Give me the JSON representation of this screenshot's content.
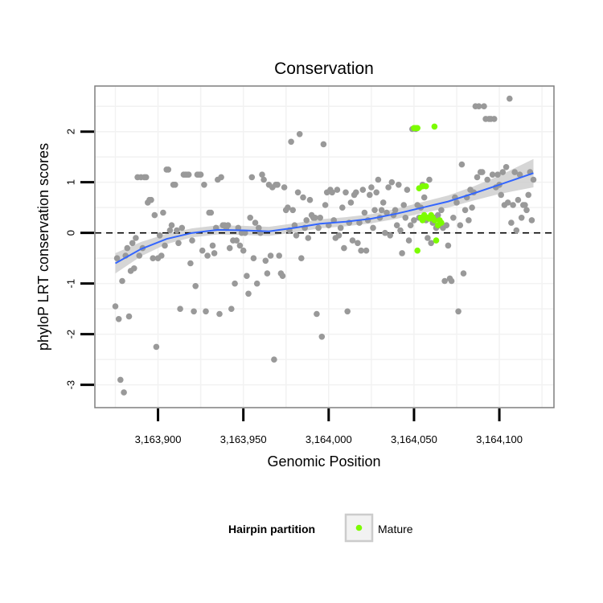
{
  "chart_data": {
    "type": "scatter",
    "title": "Conservation",
    "xlabel": "Genomic Position",
    "ylabel": "phyloP LRT conservation scores",
    "xlim": [
      3163863,
      3164132
    ],
    "ylim": [
      -3.45,
      2.9
    ],
    "x_ticks": [
      {
        "value": 3163900,
        "label": "3,163,900"
      },
      {
        "value": 3163950,
        "label": "3,163,950"
      },
      {
        "value": 3164000,
        "label": "3,164,000"
      },
      {
        "value": 3164050,
        "label": "3,164,050"
      },
      {
        "value": 3164100,
        "label": "3,164,100"
      }
    ],
    "y_ticks": [
      {
        "value": -3,
        "label": "-3"
      },
      {
        "value": -2,
        "label": "-2"
      },
      {
        "value": -1,
        "label": "-1"
      },
      {
        "value": 0,
        "label": "0"
      },
      {
        "value": 1,
        "label": "1"
      },
      {
        "value": 2,
        "label": "2"
      }
    ],
    "grid": true,
    "reference_line": {
      "y": 0,
      "style": "dashed"
    },
    "legend": {
      "title": "Hairpin partition",
      "placement": "bottom",
      "entries": [
        {
          "label": "Mature",
          "color": "#7cfc00"
        }
      ]
    },
    "colors": {
      "background_points": "#999999",
      "mature_points": "#7cfc00",
      "smooth_line": "#3366ff",
      "confidence_band": "#cccccc",
      "panel_border": "#7f7f7f",
      "grid": "#f2f2f2"
    },
    "series": [
      {
        "name": "",
        "color": "#999999",
        "points": [
          [
            3163875,
            -1.45
          ],
          [
            3163876,
            -0.5
          ],
          [
            3163877,
            -1.7
          ],
          [
            3163878,
            -2.9
          ],
          [
            3163879,
            -0.95
          ],
          [
            3163880,
            -3.15
          ],
          [
            3163881,
            -0.45
          ],
          [
            3163882,
            -0.3
          ],
          [
            3163883,
            -1.65
          ],
          [
            3163884,
            -0.75
          ],
          [
            3163885,
            -0.2
          ],
          [
            3163886,
            -0.7
          ],
          [
            3163887,
            -0.1
          ],
          [
            3163888,
            1.1
          ],
          [
            3163889,
            -0.45
          ],
          [
            3163890,
            1.1
          ],
          [
            3163891,
            -0.3
          ],
          [
            3163892,
            1.1
          ],
          [
            3163893,
            1.1
          ],
          [
            3163894,
            0.6
          ],
          [
            3163895,
            0.65
          ],
          [
            3163896,
            0.65
          ],
          [
            3163897,
            -0.5
          ],
          [
            3163898,
            0.35
          ],
          [
            3163899,
            -2.25
          ],
          [
            3163900,
            -0.5
          ],
          [
            3163901,
            -0.05
          ],
          [
            3163902,
            -0.45
          ],
          [
            3163903,
            0.4
          ],
          [
            3163904,
            -0.25
          ],
          [
            3163905,
            1.25
          ],
          [
            3163906,
            1.25
          ],
          [
            3163907,
            0.05
          ],
          [
            3163908,
            0.15
          ],
          [
            3163909,
            0.95
          ],
          [
            3163910,
            0.95
          ],
          [
            3163911,
            0.05
          ],
          [
            3163912,
            -0.2
          ],
          [
            3163913,
            -1.5
          ],
          [
            3163914,
            0.1
          ],
          [
            3163915,
            1.15
          ],
          [
            3163916,
            1.15
          ],
          [
            3163917,
            1.15
          ],
          [
            3163918,
            1.15
          ],
          [
            3163919,
            -0.6
          ],
          [
            3163920,
            -0.15
          ],
          [
            3163921,
            -1.55
          ],
          [
            3163922,
            -1.05
          ],
          [
            3163923,
            1.15
          ],
          [
            3163924,
            1.15
          ],
          [
            3163925,
            1.15
          ],
          [
            3163926,
            -0.35
          ],
          [
            3163927,
            0.95
          ],
          [
            3163928,
            -1.55
          ],
          [
            3163929,
            -0.45
          ],
          [
            3163930,
            0.4
          ],
          [
            3163931,
            0.4
          ],
          [
            3163932,
            -0.25
          ],
          [
            3163933,
            -0.4
          ],
          [
            3163934,
            0.1
          ],
          [
            3163935,
            1.05
          ],
          [
            3163936,
            -1.6
          ],
          [
            3163937,
            1.1
          ],
          [
            3163938,
            0.15
          ],
          [
            3163939,
            0.15
          ],
          [
            3163940,
            0.1
          ],
          [
            3163941,
            0.15
          ],
          [
            3163942,
            -0.3
          ],
          [
            3163943,
            -1.5
          ],
          [
            3163944,
            -0.15
          ],
          [
            3163945,
            -1.0
          ],
          [
            3163946,
            -0.15
          ],
          [
            3163947,
            0.1
          ],
          [
            3163948,
            -0.25
          ],
          [
            3163949,
            0.0
          ],
          [
            3163950,
            -0.35
          ],
          [
            3163951,
            0.0
          ],
          [
            3163952,
            -0.85
          ],
          [
            3163953,
            -1.2
          ],
          [
            3163954,
            0.3
          ],
          [
            3163955,
            1.1
          ],
          [
            3163956,
            -0.5
          ],
          [
            3163957,
            0.2
          ],
          [
            3163958,
            -1.0
          ],
          [
            3163959,
            0.1
          ],
          [
            3163960,
            0.0
          ],
          [
            3163961,
            1.15
          ],
          [
            3163962,
            1.05
          ],
          [
            3163963,
            -0.55
          ],
          [
            3163964,
            -0.8
          ],
          [
            3163965,
            0.95
          ],
          [
            3163966,
            -0.45
          ],
          [
            3163967,
            0.9
          ],
          [
            3163968,
            -2.5
          ],
          [
            3163969,
            0.95
          ],
          [
            3163970,
            0.95
          ],
          [
            3163971,
            -0.45
          ],
          [
            3163972,
            -0.8
          ],
          [
            3163973,
            -0.85
          ],
          [
            3163974,
            0.9
          ],
          [
            3163975,
            0.45
          ],
          [
            3163976,
            0.5
          ],
          [
            3163977,
            0.05
          ],
          [
            3163978,
            1.8
          ],
          [
            3163979,
            0.45
          ],
          [
            3163980,
            0.15
          ],
          [
            3163981,
            -0.05
          ],
          [
            3163982,
            0.8
          ],
          [
            3163983,
            1.95
          ],
          [
            3163984,
            -0.5
          ],
          [
            3163985,
            0.7
          ],
          [
            3163986,
            0.1
          ],
          [
            3163987,
            0.25
          ],
          [
            3163988,
            -0.1
          ],
          [
            3163989,
            0.65
          ],
          [
            3163990,
            0.35
          ],
          [
            3163991,
            0.3
          ],
          [
            3163992,
            0.3
          ],
          [
            3163993,
            -1.6
          ],
          [
            3163994,
            0.1
          ],
          [
            3163995,
            0.3
          ],
          [
            3163996,
            -2.05
          ],
          [
            3163997,
            1.75
          ],
          [
            3163998,
            0.55
          ],
          [
            3163999,
            0.8
          ],
          [
            3164000,
            0.15
          ],
          [
            3164001,
            0.85
          ],
          [
            3164002,
            0.8
          ],
          [
            3164003,
            0.25
          ],
          [
            3164004,
            -0.1
          ],
          [
            3164005,
            0.85
          ],
          [
            3164006,
            -0.05
          ],
          [
            3164007,
            0.1
          ],
          [
            3164008,
            0.5
          ],
          [
            3164009,
            -0.3
          ],
          [
            3164010,
            0.8
          ],
          [
            3164011,
            -1.55
          ],
          [
            3164012,
            0.2
          ],
          [
            3164013,
            0.6
          ],
          [
            3164014,
            -0.15
          ],
          [
            3164015,
            0.75
          ],
          [
            3164016,
            0.8
          ],
          [
            3164017,
            -0.2
          ],
          [
            3164018,
            0.2
          ],
          [
            3164019,
            -0.35
          ],
          [
            3164020,
            0.85
          ],
          [
            3164021,
            0.4
          ],
          [
            3164022,
            -0.35
          ],
          [
            3164023,
            0.25
          ],
          [
            3164024,
            0.75
          ],
          [
            3164025,
            0.9
          ],
          [
            3164026,
            0.1
          ],
          [
            3164027,
            0.45
          ],
          [
            3164028,
            0.8
          ],
          [
            3164029,
            1.05
          ],
          [
            3164030,
            0.3
          ],
          [
            3164031,
            0.45
          ],
          [
            3164032,
            0.6
          ],
          [
            3164033,
            0.0
          ],
          [
            3164034,
            0.4
          ],
          [
            3164035,
            0.9
          ],
          [
            3164036,
            -0.05
          ],
          [
            3164037,
            1.0
          ],
          [
            3164038,
            0.35
          ],
          [
            3164039,
            0.45
          ],
          [
            3164040,
            0.15
          ],
          [
            3164041,
            0.95
          ],
          [
            3164042,
            0.05
          ],
          [
            3164043,
            -0.4
          ],
          [
            3164044,
            0.55
          ],
          [
            3164045,
            0.3
          ],
          [
            3164046,
            0.85
          ],
          [
            3164047,
            -0.15
          ],
          [
            3164048,
            0.15
          ],
          [
            3164049,
            2.05
          ],
          [
            3164050,
            0.25
          ],
          [
            3164051,
            2.05
          ],
          [
            3164052,
            0.55
          ],
          [
            3164053,
            0.3
          ],
          [
            3164054,
            0.5
          ],
          [
            3164055,
            0.95
          ],
          [
            3164056,
            0.7
          ],
          [
            3164057,
            0.25
          ],
          [
            3164058,
            -0.1
          ],
          [
            3164059,
            1.05
          ],
          [
            3164060,
            -0.2
          ],
          [
            3164061,
            0.2
          ],
          [
            3164062,
            0.3
          ],
          [
            3164063,
            0.1
          ],
          [
            3164064,
            0.35
          ],
          [
            3164065,
            0.15
          ],
          [
            3164066,
            0.45
          ],
          [
            3164067,
            0.1
          ],
          [
            3164068,
            -0.95
          ],
          [
            3164069,
            0.15
          ],
          [
            3164070,
            -0.25
          ],
          [
            3164071,
            -0.9
          ],
          [
            3164072,
            -0.95
          ],
          [
            3164073,
            0.3
          ],
          [
            3164074,
            0.7
          ],
          [
            3164075,
            0.6
          ],
          [
            3164076,
            -1.55
          ],
          [
            3164077,
            0.15
          ],
          [
            3164078,
            1.35
          ],
          [
            3164079,
            -0.8
          ],
          [
            3164080,
            0.45
          ],
          [
            3164081,
            0.7
          ],
          [
            3164082,
            0.25
          ],
          [
            3164083,
            0.85
          ],
          [
            3164084,
            0.5
          ],
          [
            3164085,
            0.8
          ],
          [
            3164086,
            2.5
          ],
          [
            3164087,
            1.1
          ],
          [
            3164088,
            2.5
          ],
          [
            3164089,
            1.2
          ],
          [
            3164090,
            1.2
          ],
          [
            3164091,
            2.5
          ],
          [
            3164092,
            2.25
          ],
          [
            3164093,
            1.05
          ],
          [
            3164094,
            2.25
          ],
          [
            3164095,
            2.25
          ],
          [
            3164096,
            1.15
          ],
          [
            3164097,
            2.25
          ],
          [
            3164098,
            0.9
          ],
          [
            3164099,
            1.15
          ],
          [
            3164100,
            0.95
          ],
          [
            3164101,
            0.75
          ],
          [
            3164102,
            1.2
          ],
          [
            3164103,
            0.55
          ],
          [
            3164104,
            1.3
          ],
          [
            3164105,
            0.6
          ],
          [
            3164106,
            2.65
          ],
          [
            3164107,
            0.2
          ],
          [
            3164108,
            0.55
          ],
          [
            3164109,
            1.2
          ],
          [
            3164110,
            0.05
          ],
          [
            3164111,
            0.65
          ],
          [
            3164112,
            1.15
          ],
          [
            3164113,
            0.3
          ],
          [
            3164114,
            0.55
          ],
          [
            3164115,
            0.55
          ],
          [
            3164116,
            0.45
          ],
          [
            3164117,
            0.75
          ],
          [
            3164118,
            1.2
          ],
          [
            3164119,
            0.25
          ],
          [
            3164120,
            1.05
          ]
        ]
      },
      {
        "name": "Mature",
        "color": "#7cfc00",
        "points": [
          [
            3164050,
            2.07
          ],
          [
            3164051,
            2.07
          ],
          [
            3164052,
            2.07
          ],
          [
            3164062,
            2.1
          ],
          [
            3164052,
            -0.35
          ],
          [
            3164053,
            0.88
          ],
          [
            3164055,
            0.92
          ],
          [
            3164057,
            0.92
          ],
          [
            3164054,
            0.3
          ],
          [
            3164055,
            0.25
          ],
          [
            3164056,
            0.35
          ],
          [
            3164058,
            0.3
          ],
          [
            3164059,
            0.28
          ],
          [
            3164060,
            0.35
          ],
          [
            3164061,
            0.3
          ],
          [
            3164062,
            0.25
          ],
          [
            3164063,
            -0.15
          ],
          [
            3164064,
            0.15
          ],
          [
            3164065,
            0.25
          ],
          [
            3164066,
            0.2
          ]
        ]
      }
    ],
    "smooth": {
      "method": "loess",
      "x": [
        3163875,
        3163890,
        3163905,
        3163920,
        3163935,
        3163950,
        3163965,
        3163980,
        3163995,
        3164010,
        3164025,
        3164040,
        3164055,
        3164070,
        3164085,
        3164100,
        3164120
      ],
      "y": [
        -0.6,
        -0.32,
        -0.12,
        0.0,
        0.06,
        0.05,
        0.03,
        0.1,
        0.18,
        0.22,
        0.28,
        0.38,
        0.5,
        0.62,
        0.78,
        0.95,
        1.18
      ],
      "band_halfwidth": [
        0.2,
        0.14,
        0.1,
        0.09,
        0.09,
        0.09,
        0.09,
        0.09,
        0.09,
        0.09,
        0.09,
        0.1,
        0.11,
        0.12,
        0.14,
        0.18,
        0.28
      ]
    }
  }
}
